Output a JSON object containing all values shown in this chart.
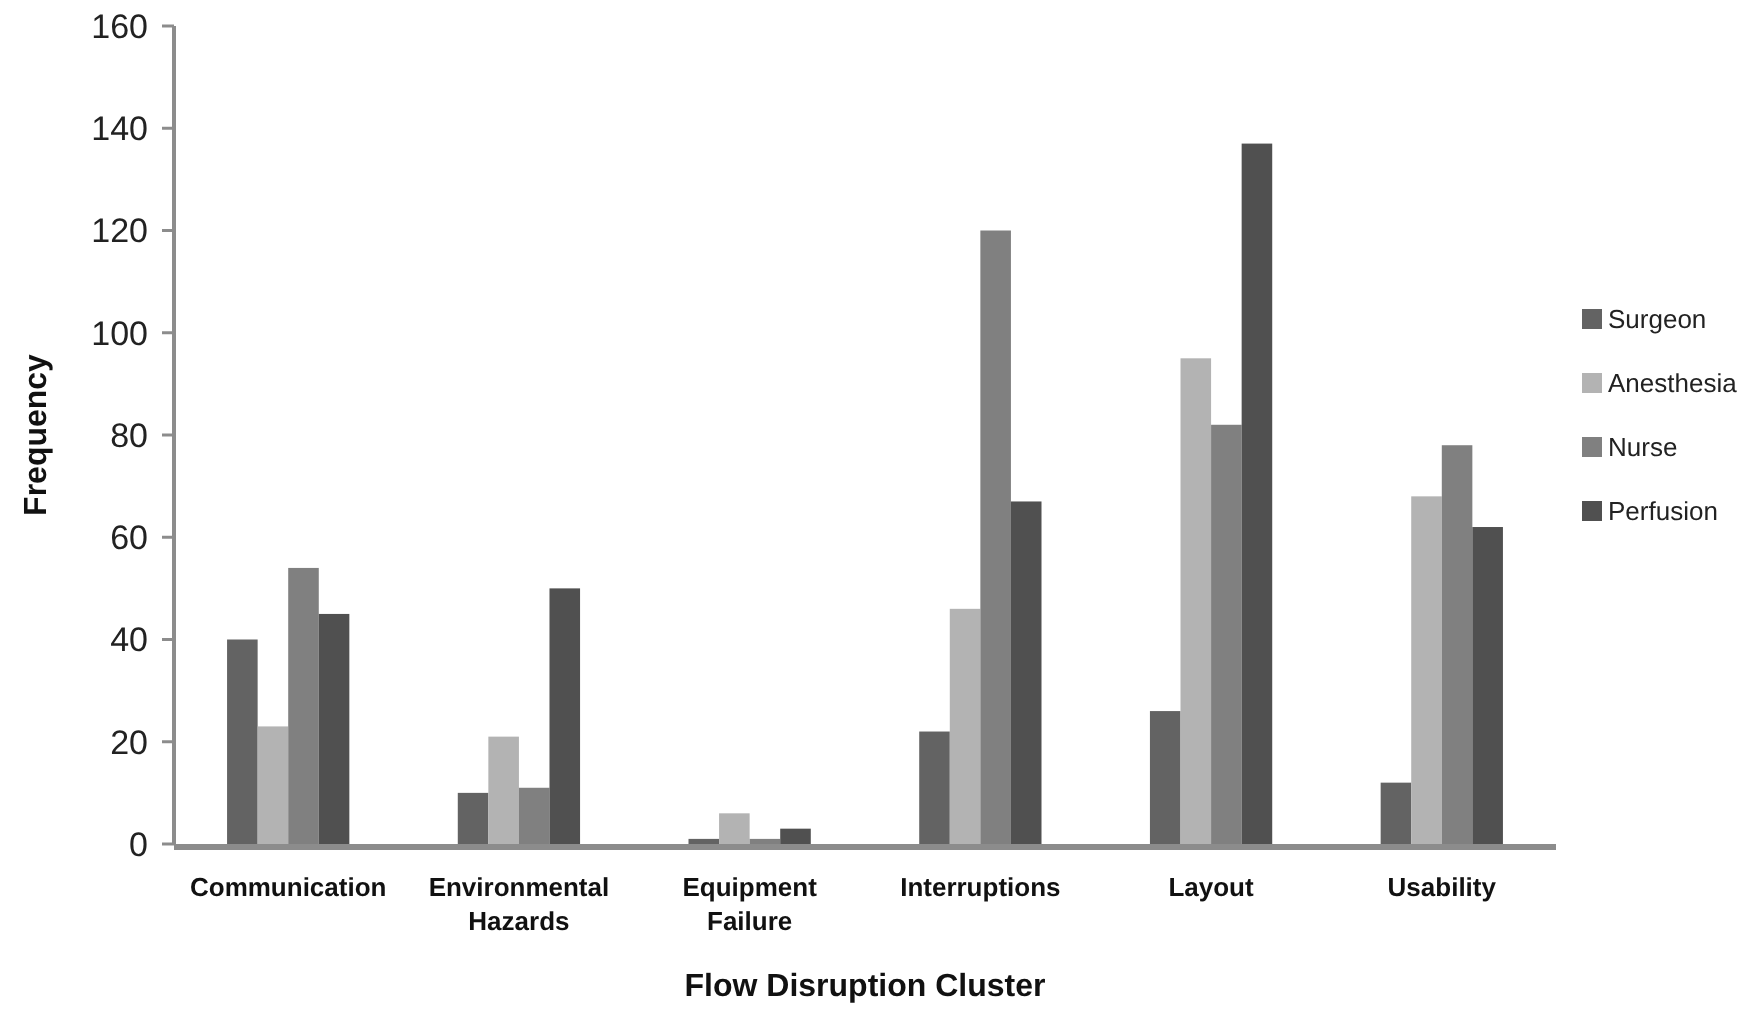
{
  "chart_data": {
    "type": "bar",
    "xlabel": "Flow Disruption Cluster",
    "ylabel": "Frequency",
    "categories": [
      "Communication",
      "Environmental Hazards",
      "Equipment Failure",
      "Interruptions",
      "Layout",
      "Usability"
    ],
    "series": [
      {
        "name": "Surgeon",
        "color": "#636363",
        "values": [
          40,
          10,
          1,
          22,
          26,
          12
        ]
      },
      {
        "name": "Anesthesia",
        "color": "#b3b3b3",
        "values": [
          23,
          21,
          6,
          46,
          95,
          68
        ]
      },
      {
        "name": "Nurse",
        "color": "#808080",
        "values": [
          54,
          11,
          1,
          120,
          82,
          78
        ]
      },
      {
        "name": "Perfusion",
        "color": "#505050",
        "values": [
          45,
          50,
          3,
          67,
          137,
          62
        ]
      }
    ],
    "ylim": [
      0,
      160
    ],
    "yticks": [
      0,
      20,
      40,
      60,
      80,
      100,
      120,
      140,
      160
    ],
    "grid": false,
    "legend": "right"
  }
}
